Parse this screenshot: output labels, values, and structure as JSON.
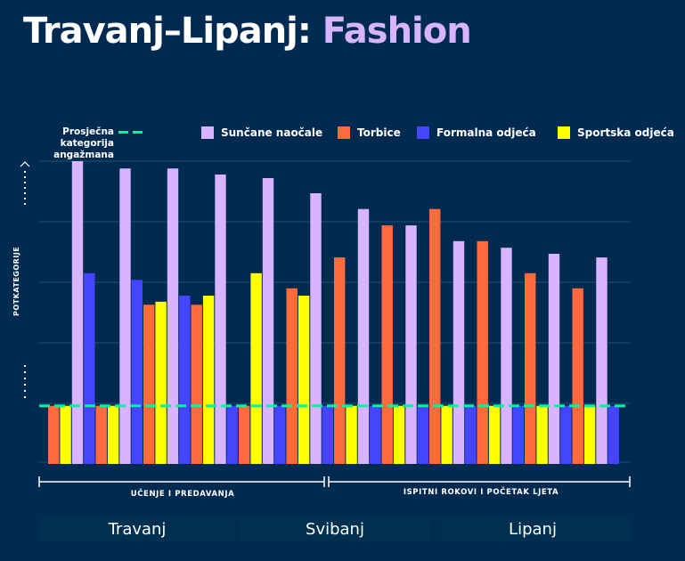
{
  "title": {
    "prefix": "Travanj–Lipanj: ",
    "accent": "Fashion"
  },
  "legend": {
    "average_label_line1": "Prosječna kategorija",
    "average_label_line2": "angažmana",
    "average_color": "#00f5a0",
    "items": [
      {
        "label": "Sunčane naočale",
        "color": "#d8b4fe"
      },
      {
        "label": "Torbice",
        "color": "#ff6b3d"
      },
      {
        "label": "Formalna odjeća",
        "color": "#4545ff"
      },
      {
        "label": "Sportska odjeća",
        "color": "#ffff00"
      }
    ]
  },
  "colors": {
    "background": "#002a50",
    "gridline": "#1f5070",
    "month_band": "#00304f"
  },
  "chart_data": {
    "type": "bar",
    "title": "Travanj–Lipanj: Fashion",
    "xlabel": "",
    "ylabel": "POTKATEGORIJE",
    "ylim": [
      0,
      5
    ],
    "grid": true,
    "legend_position": "top",
    "average_line": 0.96,
    "series_order": [
      "Torbice",
      "Sportska odjeća",
      "Sunčane naočale",
      "Formalna odjeća"
    ],
    "bars": [
      {
        "series": "Torbice",
        "value": 0.96
      },
      {
        "series": "Sportska odjeća",
        "value": 0.96
      },
      {
        "series": "Sunčane naočale",
        "value": 5.0
      },
      {
        "series": "Formalna odjeća",
        "value": 3.15
      },
      {
        "series": "Torbice",
        "value": 0.96
      },
      {
        "series": "Sportska odjeća",
        "value": 0.96
      },
      {
        "series": "Sunčane naočale",
        "value": 4.88
      },
      {
        "series": "Formalna odjeća",
        "value": 3.04
      },
      {
        "series": "Torbice",
        "value": 2.63
      },
      {
        "series": "Sportska odjeća",
        "value": 2.68
      },
      {
        "series": "Sunčane naočale",
        "value": 4.88
      },
      {
        "series": "Formalna odjeća",
        "value": 2.78
      },
      {
        "series": "Torbice",
        "value": 2.63
      },
      {
        "series": "Sportska odjeća",
        "value": 2.78
      },
      {
        "series": "Sunčane naočale",
        "value": 4.78
      },
      {
        "series": "Formalna odjeća",
        "value": 0.96
      },
      {
        "series": "Torbice",
        "value": 0.96
      },
      {
        "series": "Sportska odjeća",
        "value": 3.15
      },
      {
        "series": "Sunčane naočale",
        "value": 4.72
      },
      {
        "series": "Formalna odjeća",
        "value": 0.96
      },
      {
        "series": "Torbice",
        "value": 2.9
      },
      {
        "series": "Sportska odjeća",
        "value": 2.78
      },
      {
        "series": "Sunčane naočale",
        "value": 4.47
      },
      {
        "series": "Formalna odjeća",
        "value": 0.96
      },
      {
        "series": "Torbice",
        "value": 3.41
      },
      {
        "series": "Sportska odjeća",
        "value": 0.96
      },
      {
        "series": "Sunčane naočale",
        "value": 4.21
      },
      {
        "series": "Formalna odjeća",
        "value": 0.96
      },
      {
        "series": "Torbice",
        "value": 3.94
      },
      {
        "series": "Sportska odjeća",
        "value": 0.96
      },
      {
        "series": "Sunčane naočale",
        "value": 3.94
      },
      {
        "series": "Formalna odjeća",
        "value": 0.96
      },
      {
        "series": "Torbice",
        "value": 4.21
      },
      {
        "series": "Sportska odjeća",
        "value": 0.96
      },
      {
        "series": "Sunčane naočale",
        "value": 3.68
      },
      {
        "series": "Formalna odjeća",
        "value": 0.96
      },
      {
        "series": "Torbice",
        "value": 3.68
      },
      {
        "series": "Sportska odjeća",
        "value": 0.96
      },
      {
        "series": "Sunčane naočale",
        "value": 3.57
      },
      {
        "series": "Formalna odjeća",
        "value": 0.96
      },
      {
        "series": "Torbice",
        "value": 3.15
      },
      {
        "series": "Sportska odjeća",
        "value": 0.96
      },
      {
        "series": "Sunčane naočale",
        "value": 3.47
      },
      {
        "series": "Formalna odjeća",
        "value": 0.96
      },
      {
        "series": "Torbice",
        "value": 2.9
      },
      {
        "series": "Sportska odjeća",
        "value": 0.96
      },
      {
        "series": "Sunčane naočale",
        "value": 3.41
      },
      {
        "series": "Formalna odjeća",
        "value": 0.96
      }
    ],
    "periods": [
      {
        "label": "UČENJE I PREDAVANJA",
        "bar_range": [
          0,
          23
        ]
      },
      {
        "label": "ISPITNI ROKOVI I POČETAK LJETA",
        "bar_range": [
          24,
          47
        ]
      }
    ],
    "months": [
      "Travanj",
      "Svibanj",
      "Lipanj"
    ]
  }
}
